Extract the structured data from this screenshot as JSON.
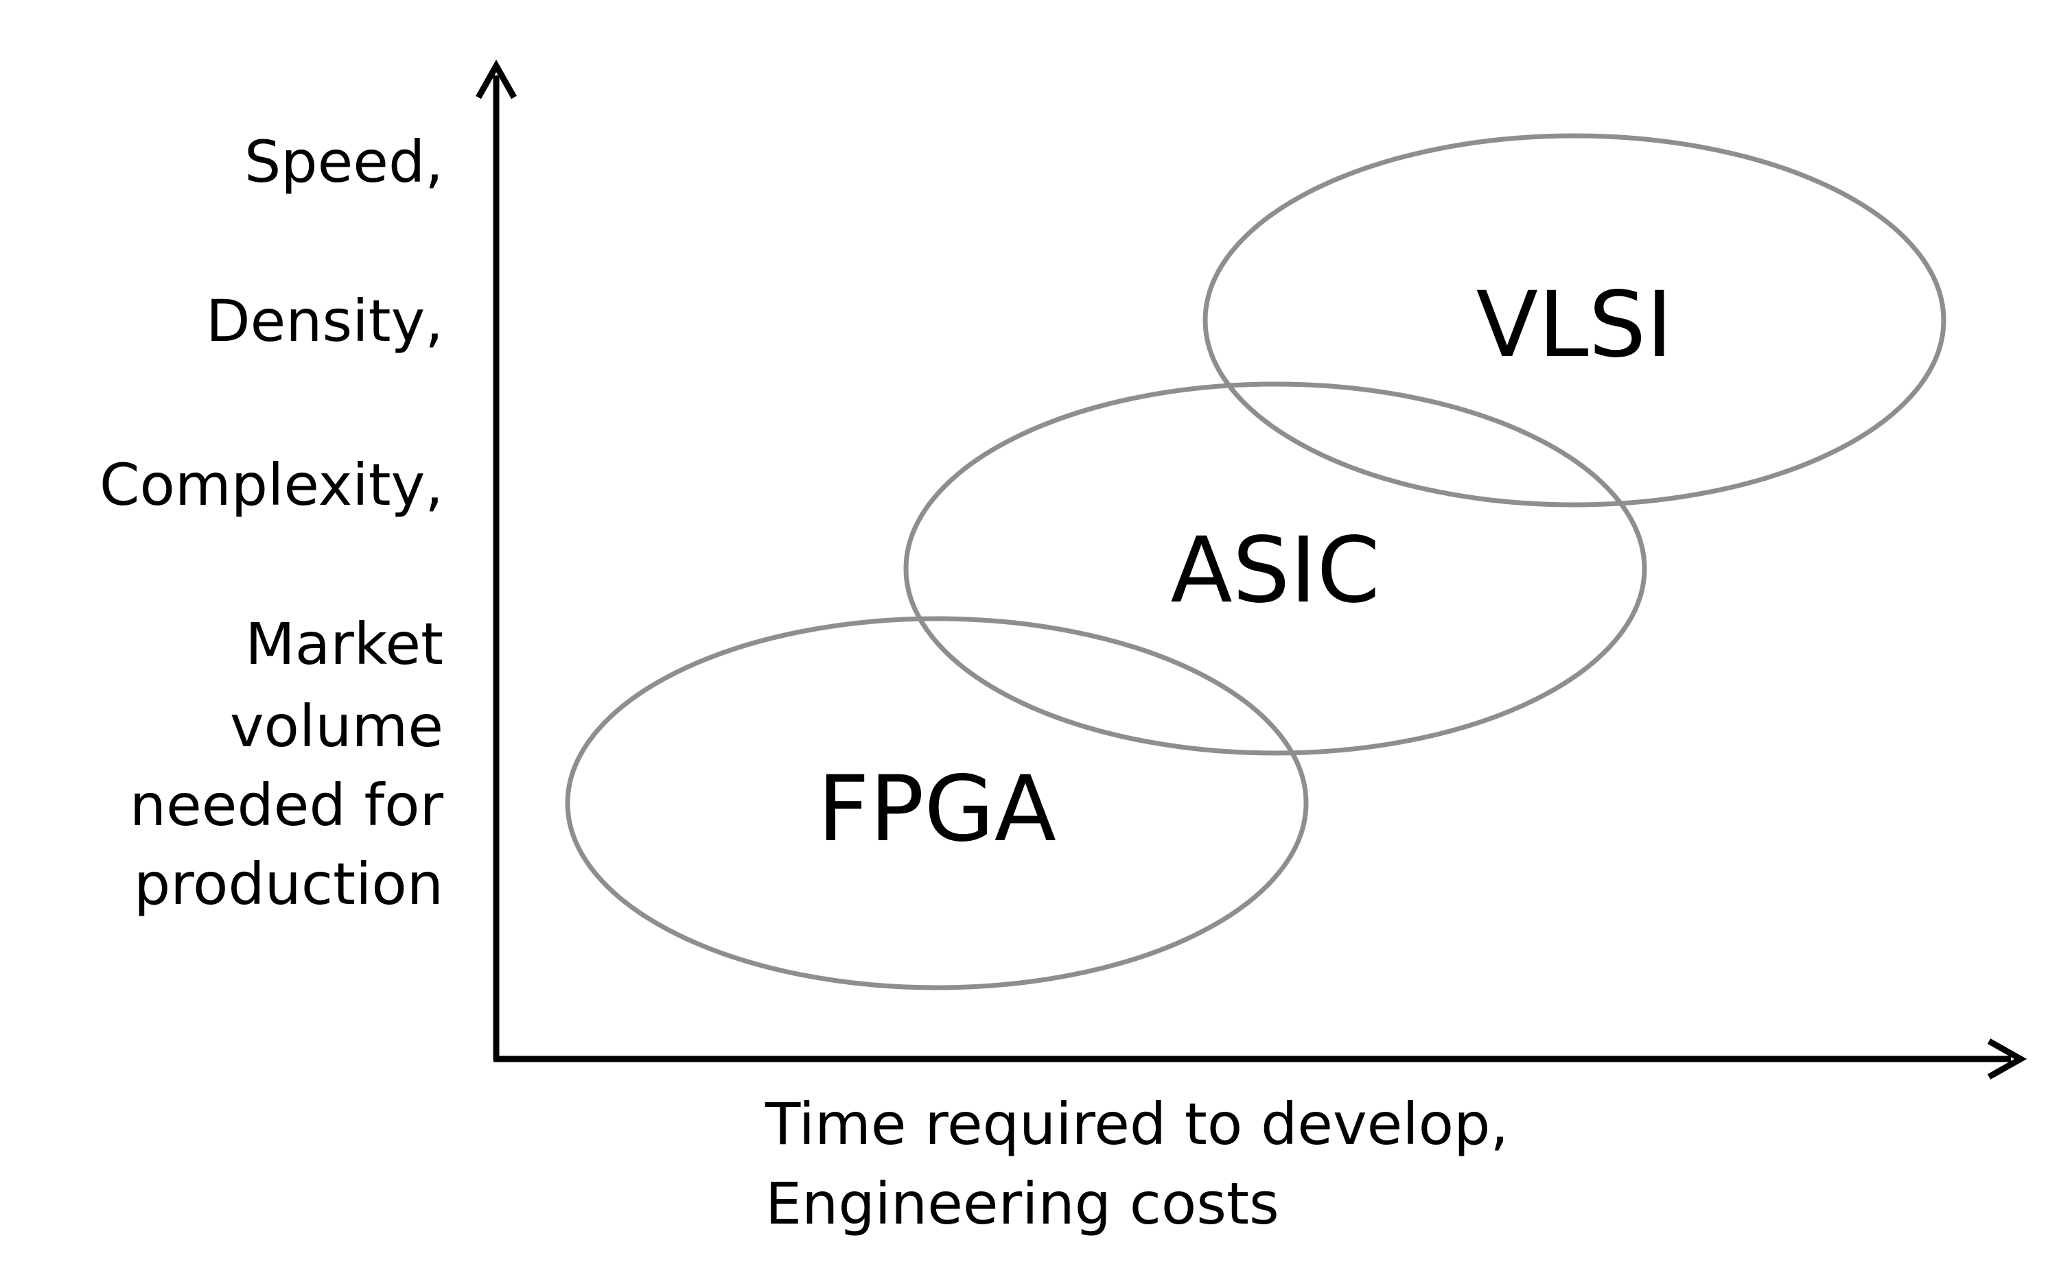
{
  "y_axis": {
    "lines": [
      "Speed,",
      "Density,",
      "Complexity,",
      "Market",
      "volume",
      "needed for",
      "production"
    ]
  },
  "x_axis": {
    "lines": [
      "Time required to develop,",
      "Engineering costs"
    ]
  },
  "regions": [
    {
      "label": "FPGA"
    },
    {
      "label": "ASIC"
    },
    {
      "label": "VLSI"
    }
  ],
  "colors": {
    "ellipse_stroke": "#8e8e8e",
    "axis": "#000000"
  }
}
